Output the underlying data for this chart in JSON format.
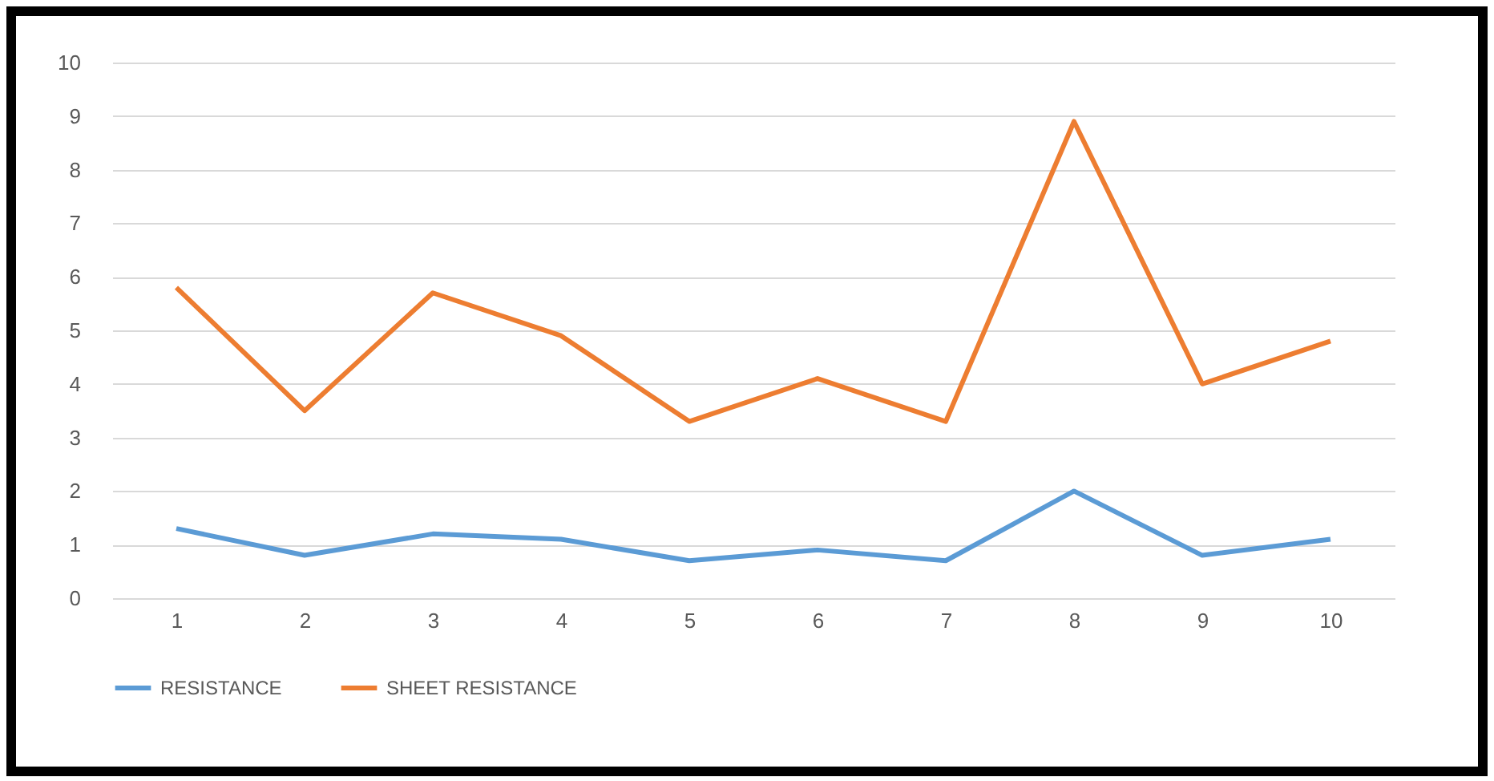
{
  "chart_data": {
    "type": "line",
    "categories": [
      "1",
      "2",
      "3",
      "4",
      "5",
      "6",
      "7",
      "8",
      "9",
      "10"
    ],
    "series": [
      {
        "name": "RESISTANCE",
        "color": "#5b9bd5",
        "values": [
          1.3,
          0.8,
          1.2,
          1.1,
          0.7,
          0.9,
          0.7,
          2.0,
          0.8,
          1.1
        ]
      },
      {
        "name": "SHEET RESISTANCE",
        "color": "#ed7d31",
        "values": [
          5.8,
          3.5,
          5.7,
          4.9,
          3.3,
          4.1,
          3.3,
          8.9,
          4.0,
          4.8
        ]
      }
    ],
    "ylim": [
      0,
      10
    ],
    "yticks": [
      0,
      1,
      2,
      3,
      4,
      5,
      6,
      7,
      8,
      9,
      10
    ],
    "grid": "y",
    "legend": "bottom"
  }
}
